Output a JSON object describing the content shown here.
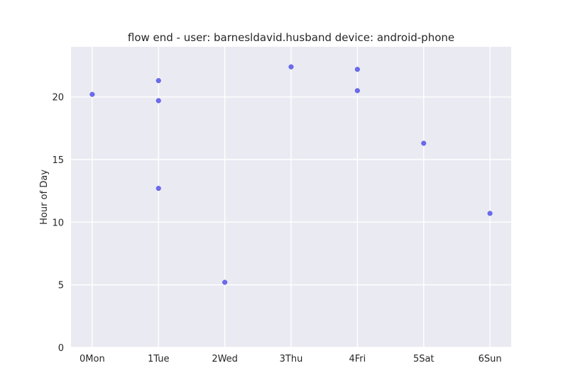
{
  "chart_data": {
    "type": "scatter",
    "title": "flow end - user: barnesldavid.husband device: android-phone",
    "xlabel": "",
    "ylabel": "Hour of Day",
    "x_categories": [
      "0Mon",
      "1Tue",
      "2Wed",
      "3Thu",
      "4Fri",
      "5Sat",
      "6Sun"
    ],
    "xlim": [
      -0.32,
      6.32
    ],
    "ylim": [
      0,
      24
    ],
    "y_ticks": [
      0,
      5,
      10,
      15,
      20
    ],
    "grid": true,
    "background_color": "#EAEAF2",
    "point_color": "#6B6BEF",
    "points": [
      {
        "x": 0,
        "y": 20.2
      },
      {
        "x": 1,
        "y": 21.3
      },
      {
        "x": 1,
        "y": 19.7
      },
      {
        "x": 1,
        "y": 12.7
      },
      {
        "x": 2,
        "y": 5.2
      },
      {
        "x": 3,
        "y": 22.4
      },
      {
        "x": 4,
        "y": 22.2
      },
      {
        "x": 4,
        "y": 20.5
      },
      {
        "x": 5,
        "y": 16.3
      },
      {
        "x": 6,
        "y": 10.7
      }
    ]
  }
}
